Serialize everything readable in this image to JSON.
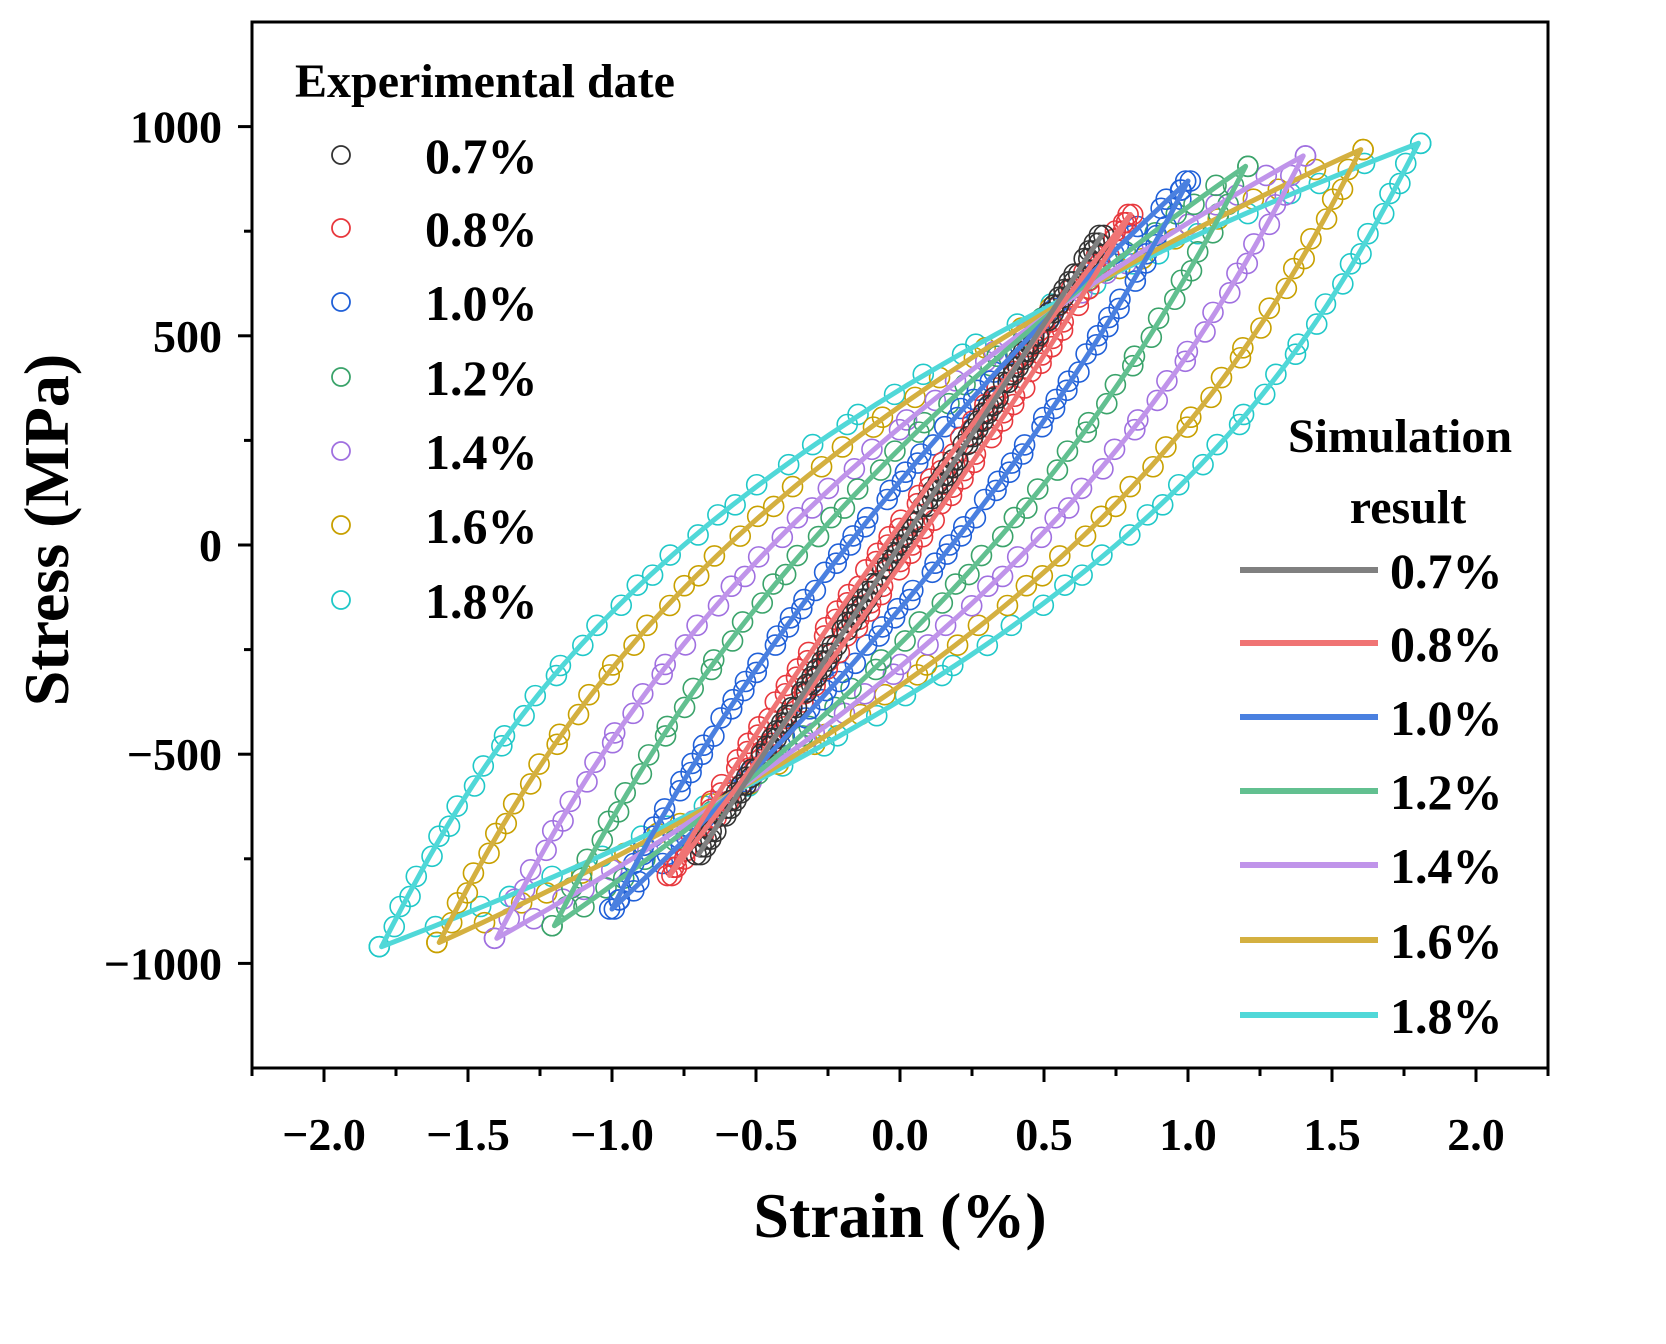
{
  "chart_data": {
    "type": "line",
    "title": "",
    "xlabel": "Strain (%)",
    "ylabel": "Stress (MPa)",
    "xlim": [
      -2.25,
      2.25
    ],
    "ylim": [
      -1250,
      1250
    ],
    "xticks": [
      -2.0,
      -1.5,
      -1.0,
      -0.5,
      0.0,
      0.5,
      1.0,
      1.5,
      2.0
    ],
    "xtick_labels": [
      "−2.0",
      "−1.5",
      "−1.0",
      "−0.5",
      "0.0",
      "0.5",
      "1.0",
      "1.5",
      "2.0"
    ],
    "yticks": [
      -1000,
      -500,
      0,
      500,
      1000
    ],
    "ytick_labels": [
      "−1000",
      "−500",
      "0",
      "500",
      "1000"
    ],
    "grid": false,
    "elastic_slope_mpa_per_percent": 1340,
    "legend_experimental": {
      "title": "Experimental date",
      "placement": "top-left"
    },
    "legend_simulation": {
      "title_line1": "Simulation",
      "title_line2": "result",
      "placement": "bottom-right"
    },
    "series": [
      {
        "name": "0.7%",
        "strain_amplitude": 0.7,
        "max_stress": 740,
        "min_stress": -740,
        "zero_stress_strain_loading": 0.0,
        "exp_color": "#333333",
        "sim_color": "#808080"
      },
      {
        "name": "0.8%",
        "strain_amplitude": 0.8,
        "max_stress": 790,
        "min_stress": -790,
        "zero_stress_strain_loading": -0.05,
        "exp_color": "#e8383d",
        "sim_color": "#f07474"
      },
      {
        "name": "1.0%",
        "strain_amplitude": 1.0,
        "max_stress": 870,
        "min_stress": -870,
        "zero_stress_strain_loading": -0.18,
        "exp_color": "#2060d8",
        "sim_color": "#4a80e0"
      },
      {
        "name": "1.2%",
        "strain_amplitude": 1.2,
        "max_stress": 905,
        "min_stress": -910,
        "zero_stress_strain_loading": -0.32,
        "exp_color": "#3aa36a",
        "sim_color": "#62c090"
      },
      {
        "name": "1.4%",
        "strain_amplitude": 1.4,
        "max_stress": 930,
        "min_stress": -940,
        "zero_stress_strain_loading": -0.45,
        "exp_color": "#a070e0",
        "sim_color": "#c094ea"
      },
      {
        "name": "1.6%",
        "strain_amplitude": 1.6,
        "max_stress": 945,
        "min_stress": -950,
        "zero_stress_strain_loading": -0.6,
        "exp_color": "#c8a000",
        "sim_color": "#d4b040"
      },
      {
        "name": "1.8%",
        "strain_amplitude": 1.8,
        "max_stress": 960,
        "min_stress": -960,
        "zero_stress_strain_loading": -0.75,
        "exp_color": "#20c8c8",
        "sim_color": "#50d8d8"
      }
    ]
  }
}
